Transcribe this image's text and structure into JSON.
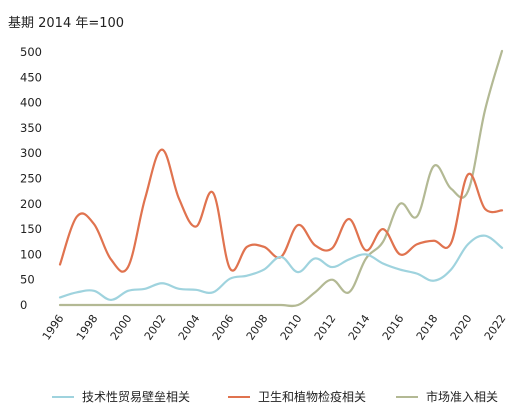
{
  "chart_data": {
    "type": "line",
    "title": "基期 2014 年=100",
    "xlabel": "",
    "ylabel": "",
    "x": [
      1996,
      1997,
      1998,
      1999,
      2000,
      2001,
      2002,
      2003,
      2004,
      2005,
      2006,
      2007,
      2008,
      2009,
      2010,
      2011,
      2012,
      2013,
      2014,
      2015,
      2016,
      2017,
      2018,
      2019,
      2020,
      2021,
      2022
    ],
    "x_tick_labels": [
      "1996",
      "1998",
      "2000",
      "2002",
      "2004",
      "2006",
      "2008",
      "2010",
      "2012",
      "2014",
      "2016",
      "2018",
      "2020",
      "2022"
    ],
    "y_tick_labels": [
      "0",
      "50",
      "100",
      "150",
      "200",
      "250",
      "300",
      "350",
      "400",
      "450",
      "500"
    ],
    "ylim": [
      0,
      500
    ],
    "grid": false,
    "legend_position": "bottom",
    "series": [
      {
        "name": "技术性贸易壁垒相关",
        "color": "#9fd3de",
        "values": [
          15,
          25,
          28,
          10,
          28,
          32,
          43,
          32,
          30,
          25,
          52,
          58,
          70,
          95,
          65,
          92,
          75,
          90,
          100,
          82,
          70,
          62,
          48,
          70,
          120,
          137,
          113
        ]
      },
      {
        "name": "卫生和植物检疫相关",
        "color": "#e0734f",
        "values": [
          80,
          175,
          160,
          90,
          75,
          210,
          307,
          210,
          155,
          222,
          72,
          115,
          115,
          95,
          158,
          118,
          112,
          170,
          108,
          150,
          100,
          120,
          127,
          122,
          258,
          190,
          187
        ]
      },
      {
        "name": "市场准入相关",
        "color": "#b3b994",
        "values": [
          0,
          0,
          0,
          0,
          0,
          0,
          0,
          0,
          0,
          0,
          0,
          0,
          0,
          0,
          0,
          25,
          50,
          25,
          92,
          125,
          200,
          175,
          275,
          230,
          225,
          385,
          502
        ]
      }
    ]
  }
}
